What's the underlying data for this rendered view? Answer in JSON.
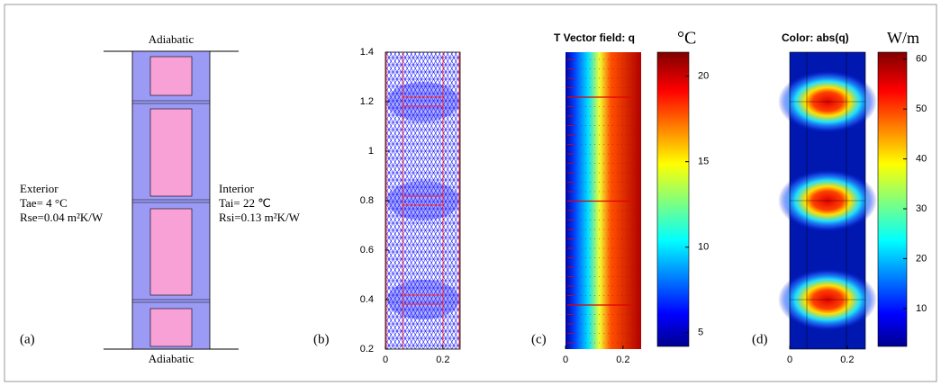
{
  "panel_a": {
    "label": "(a)",
    "top": "Adiabatic",
    "bottom": "Adiabatic",
    "exterior": [
      "Exterior",
      "Tae= 4 °C",
      "Rse=0.04 m²K/W"
    ],
    "interior": [
      "Interior",
      "Tai= 22 ℃",
      "Rsi=0.13 m²K/W"
    ]
  },
  "panel_b": {
    "label": "(b)",
    "xlim": [
      0,
      0.26
    ],
    "ylim": [
      0.2,
      1.4
    ],
    "xticks": [
      0,
      0.2
    ],
    "yticks": [
      0.2,
      0.4,
      0.6,
      0.8,
      1,
      1.2,
      1.4
    ]
  },
  "panel_c": {
    "label": "(c)",
    "title": "T  Vector field: q",
    "unit": "°C",
    "xlim": [
      0,
      0.26
    ],
    "xticks": [
      0,
      0.2
    ],
    "clim": [
      4.2,
      21.4
    ],
    "cticks": [
      5,
      10,
      15,
      20
    ]
  },
  "panel_d": {
    "label": "(d)",
    "title": "Color: abs(q)",
    "unit": "W/m",
    "xlim": [
      0,
      0.26
    ],
    "xticks": [
      0,
      0.2
    ],
    "clim": [
      2.4,
      61.4
    ],
    "cticks": [
      10,
      20,
      30,
      40,
      50,
      60
    ]
  }
}
